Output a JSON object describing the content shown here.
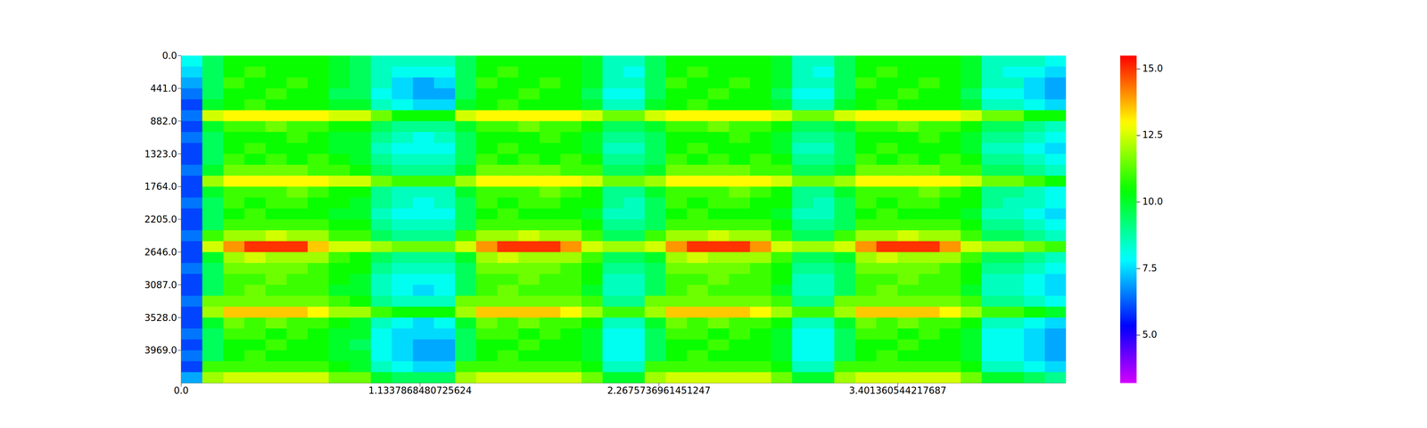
{
  "chart_data": {
    "type": "heatmap",
    "x_bins": [
      0,
      0.1,
      0.2,
      0.3,
      0.4,
      0.5,
      0.6,
      0.7,
      0.8,
      0.9,
      1.0,
      1.1,
      1.2,
      1.3,
      1.4,
      1.5,
      1.6,
      1.7,
      1.8,
      1.9,
      2.0,
      2.1,
      2.2,
      2.3,
      2.4,
      2.5,
      2.6,
      2.7,
      2.8,
      2.9,
      3.0,
      3.1,
      3.2,
      3.3,
      3.4,
      3.5,
      3.6,
      3.7,
      3.8,
      3.9,
      4.0,
      4.1,
      4.2
    ],
    "y_bins": [
      0,
      147,
      294,
      441,
      588,
      735,
      882,
      1029,
      1176,
      1323,
      1470,
      1617,
      1764,
      1911,
      2058,
      2205,
      2352,
      2499,
      2646,
      2793,
      2940,
      3087,
      3234,
      3381,
      3528,
      3675,
      3822,
      3969,
      4116,
      4263,
      4410
    ],
    "cells": [
      [
        8,
        7.5,
        7,
        6.5,
        6,
        6.5,
        6,
        6.5,
        6,
        6,
        6.5,
        6,
        6,
        6.5,
        6,
        6,
        6.5,
        6,
        6,
        6.5,
        6,
        6,
        6.5,
        6,
        6,
        6.5,
        6,
        6.5,
        6,
        7
      ],
      [
        9.5,
        9.5,
        9.5,
        9.5,
        10,
        12.5,
        10,
        9.5,
        9.5,
        9.5,
        10,
        12,
        10,
        9.5,
        9.5,
        9.5,
        11,
        12.5,
        10,
        9.5,
        9.5,
        9.5,
        11.5,
        12,
        10,
        9.5,
        9.5,
        9.5,
        11,
        12
      ],
      [
        10.5,
        10.5,
        11,
        10.5,
        10.5,
        13,
        11,
        10.5,
        10.5,
        11,
        11.5,
        13,
        11,
        11,
        10.5,
        11,
        12,
        14,
        12,
        11.5,
        11,
        11,
        11.5,
        13.5,
        11.5,
        11,
        10.5,
        10.5,
        11,
        12.5
      ],
      [
        10.5,
        11,
        10.5,
        10.5,
        11,
        13,
        11,
        10.5,
        11,
        10.5,
        11.5,
        13,
        11,
        10.5,
        11,
        11,
        12,
        15,
        12.5,
        11.5,
        11,
        11.5,
        11.5,
        13.5,
        11,
        11,
        10.5,
        11,
        11,
        12.5
      ],
      [
        10.5,
        10.5,
        10.5,
        11,
        10.5,
        13,
        11.5,
        10.5,
        10.5,
        11,
        11.5,
        13,
        11,
        11,
        10.5,
        11,
        12.5,
        15,
        12,
        11.5,
        11.5,
        11,
        11.5,
        13.5,
        11.5,
        10.5,
        11,
        10.5,
        11,
        12.5
      ],
      [
        10.5,
        10.5,
        11,
        10.5,
        10.5,
        13,
        11,
        11,
        10.5,
        10.5,
        11.5,
        13,
        11.5,
        11,
        10.5,
        11,
        12,
        15,
        12,
        11.5,
        11,
        11,
        11.5,
        13.5,
        11,
        11,
        10.5,
        10.5,
        11,
        12.5
      ],
      [
        10.5,
        10.5,
        10.5,
        10.5,
        10.5,
        13,
        11,
        10.5,
        10.5,
        11,
        11,
        13,
        11,
        10.5,
        10.5,
        11,
        12,
        13.5,
        12,
        11,
        11,
        11,
        11.5,
        13,
        11,
        10.5,
        10.5,
        10.5,
        11,
        12.5
      ],
      [
        10,
        10,
        10,
        9.5,
        10,
        12.5,
        10.5,
        10,
        10,
        10.5,
        11,
        12.5,
        10.5,
        10.5,
        10,
        10.5,
        11,
        12.5,
        11,
        10.5,
        10.5,
        10,
        11,
        12,
        10.5,
        10,
        10,
        10,
        10.5,
        11.5
      ],
      [
        9.5,
        9.5,
        9.5,
        9.5,
        10,
        12.5,
        10.5,
        10,
        10,
        10,
        10.5,
        12.5,
        10.5,
        10,
        10,
        10.5,
        11,
        12.5,
        10.5,
        10.5,
        10,
        10,
        10.5,
        12,
        10,
        10,
        9.5,
        10,
        10,
        11.5
      ],
      [
        8.5,
        8.5,
        8.5,
        8,
        8.5,
        11.5,
        9.5,
        9,
        8.5,
        9,
        9.5,
        11.5,
        9,
        9,
        8.5,
        9,
        9.5,
        12,
        9.5,
        9,
        8.5,
        8.5,
        9,
        11,
        8.5,
        8,
        8,
        8,
        8.5,
        10
      ],
      [
        8.5,
        8,
        7.5,
        7.5,
        8,
        10.5,
        9,
        8.5,
        8,
        8.5,
        9,
        11,
        8.5,
        8.5,
        8,
        8.5,
        9,
        11.5,
        9,
        8.5,
        8,
        8,
        8.5,
        10.5,
        8,
        7.5,
        7.5,
        7.5,
        8,
        9.5
      ],
      [
        8.5,
        8,
        7,
        7,
        7.5,
        10.5,
        9,
        8,
        8,
        8.5,
        9,
        11,
        8.5,
        8,
        8,
        8.5,
        9,
        11.5,
        9,
        8.5,
        8,
        7.5,
        8.5,
        10.5,
        7.5,
        7.5,
        7,
        7,
        7.5,
        9.5
      ],
      [
        8.5,
        8,
        7.5,
        7,
        7.5,
        10.5,
        9,
        8.5,
        8,
        8.5,
        9,
        11,
        8.5,
        8.5,
        8,
        8.5,
        9,
        11.5,
        9,
        8.5,
        8,
        8,
        8.5,
        10.5,
        8,
        7.5,
        7,
        7,
        7.5,
        9.5
      ],
      [
        9.5,
        9.5,
        9.5,
        9.5,
        10,
        12.5,
        10,
        9.5,
        9.5,
        9.5,
        10,
        12,
        10,
        9.5,
        9.5,
        9.5,
        11,
        12.5,
        10,
        9.5,
        9.5,
        9.5,
        11.5,
        12,
        10,
        9.5,
        9.5,
        9.5,
        11,
        12
      ],
      [
        10.5,
        10.5,
        11,
        10.5,
        10.5,
        13,
        11,
        10.5,
        10.5,
        11,
        11.5,
        13,
        11,
        11,
        10.5,
        11,
        12,
        14,
        12,
        11.5,
        11,
        11,
        11.5,
        13.5,
        11.5,
        11,
        10.5,
        10.5,
        11,
        12.5
      ],
      [
        10.5,
        11,
        10.5,
        10.5,
        11,
        13,
        11,
        10.5,
        11,
        10.5,
        11.5,
        13,
        11,
        10.5,
        11,
        11,
        12,
        15,
        12.5,
        11.5,
        11,
        11.5,
        11.5,
        13.5,
        11,
        11,
        10.5,
        11,
        11,
        12.5
      ],
      [
        10.5,
        10.5,
        10.5,
        11,
        10.5,
        13,
        11.5,
        10.5,
        10.5,
        11,
        11.5,
        13,
        11,
        11,
        10.5,
        11,
        12.5,
        15,
        12,
        11.5,
        11.5,
        11,
        11.5,
        13.5,
        11.5,
        10.5,
        11,
        10.5,
        11,
        12.5
      ],
      [
        10.5,
        10.5,
        11,
        10.5,
        10.5,
        13,
        11,
        11,
        10.5,
        10.5,
        11.5,
        13,
        11.5,
        11,
        10.5,
        11,
        12,
        15,
        12,
        11.5,
        11,
        11,
        11.5,
        13.5,
        11,
        11,
        10.5,
        10.5,
        11,
        12.5
      ],
      [
        10.5,
        10.5,
        10.5,
        10.5,
        10.5,
        13,
        11,
        10.5,
        10.5,
        11,
        11,
        13,
        11,
        10.5,
        10.5,
        11,
        12,
        14,
        12,
        11,
        11,
        11,
        11.5,
        13,
        11,
        10.5,
        10.5,
        10.5,
        11,
        12.5
      ],
      [
        10,
        10,
        10,
        9.5,
        10,
        12.5,
        10.5,
        10,
        10,
        10.5,
        11,
        12.5,
        10.5,
        10.5,
        10,
        10.5,
        11,
        12.5,
        11,
        10.5,
        10.5,
        10,
        11,
        12,
        10.5,
        10,
        10,
        10,
        10.5,
        11.5
      ],
      [
        8.5,
        8.5,
        8.5,
        8,
        8.5,
        11.5,
        9.5,
        9,
        8.5,
        9,
        9.5,
        11.5,
        9,
        9,
        8.5,
        9,
        9.5,
        12,
        9.5,
        9,
        8.5,
        8.5,
        9,
        11,
        8.5,
        8,
        8,
        8,
        8.5,
        10
      ],
      [
        8.5,
        8,
        8.5,
        8,
        8.5,
        11.5,
        9.5,
        9,
        8.5,
        9,
        9.5,
        11.5,
        9,
        8.5,
        8.5,
        9,
        9.5,
        12,
        9.5,
        9,
        8.5,
        8.5,
        9,
        11,
        8.5,
        8,
        8,
        8,
        8.5,
        10
      ],
      [
        9.5,
        9.5,
        9.5,
        9.5,
        10,
        12.5,
        10,
        9.5,
        9.5,
        9.5,
        10,
        12,
        10,
        9.5,
        9.5,
        9.5,
        11,
        12.5,
        10,
        9.5,
        9.5,
        9.5,
        11.5,
        12,
        10,
        9.5,
        9.5,
        9.5,
        11,
        12
      ],
      [
        10.5,
        10.5,
        11,
        10.5,
        10.5,
        13,
        11,
        10.5,
        10.5,
        11,
        11.5,
        13,
        11,
        11,
        10.5,
        11,
        12,
        14,
        12,
        11.5,
        11,
        11,
        11.5,
        13.5,
        11.5,
        11,
        10.5,
        10.5,
        11,
        12.5
      ],
      [
        10.5,
        11,
        10.5,
        10.5,
        11,
        13,
        11,
        10.5,
        11,
        10.5,
        11.5,
        13,
        11,
        10.5,
        11,
        11,
        12,
        15,
        12.5,
        11.5,
        11,
        11.5,
        11.5,
        13.5,
        11,
        11,
        10.5,
        11,
        11,
        12.5
      ],
      [
        10.5,
        10.5,
        10.5,
        11,
        10.5,
        13,
        11.5,
        10.5,
        10.5,
        11,
        11.5,
        13,
        11,
        11,
        10.5,
        11,
        12.5,
        15,
        12,
        11.5,
        11.5,
        11,
        11.5,
        13.5,
        11.5,
        10.5,
        11,
        10.5,
        11,
        12.5
      ],
      [
        10.5,
        10.5,
        11,
        10.5,
        10.5,
        13,
        11,
        11,
        10.5,
        10.5,
        11.5,
        13,
        11.5,
        11,
        10.5,
        11,
        12,
        15,
        12,
        11.5,
        11,
        11,
        11.5,
        13.5,
        11,
        11,
        10.5,
        10.5,
        11,
        12.5
      ],
      [
        10.5,
        10.5,
        10.5,
        10.5,
        10.5,
        13,
        11,
        10.5,
        10.5,
        11,
        11,
        13,
        11,
        10.5,
        10.5,
        11,
        12,
        14,
        12,
        11,
        11,
        11,
        11.5,
        13,
        11,
        10.5,
        10.5,
        10.5,
        11,
        12.5
      ],
      [
        10,
        10,
        10,
        9.5,
        10,
        12.5,
        10.5,
        10,
        10,
        10.5,
        11,
        12.5,
        10.5,
        10.5,
        10,
        10.5,
        11,
        12.5,
        11,
        10.5,
        10.5,
        10,
        11,
        12,
        10.5,
        10,
        10,
        10,
        10.5,
        11.5
      ],
      [
        8.5,
        8.5,
        8.5,
        8,
        8.5,
        11.5,
        9.5,
        9,
        8.5,
        9,
        9.5,
        11.5,
        9,
        9,
        8.5,
        9,
        9.5,
        12,
        9.5,
        9,
        8.5,
        8.5,
        9,
        11,
        8.5,
        8,
        8,
        8,
        8.5,
        10
      ],
      [
        8.5,
        8,
        8.5,
        8,
        8.5,
        11.5,
        9.5,
        9,
        8.5,
        9,
        9.5,
        11.5,
        9,
        8.5,
        8.5,
        9,
        9.5,
        12,
        9.5,
        9,
        8.5,
        8.5,
        9,
        11,
        8.5,
        8,
        8,
        8,
        8.5,
        10
      ],
      [
        9.5,
        9.5,
        9.5,
        9.5,
        10,
        12.5,
        10,
        9.5,
        9.5,
        9.5,
        10,
        12,
        10,
        9.5,
        9.5,
        9.5,
        11,
        12.5,
        10,
        9.5,
        9.5,
        9.5,
        11.5,
        12,
        10,
        9.5,
        9.5,
        9.5,
        11,
        12
      ],
      [
        10.5,
        10.5,
        11,
        10.5,
        10.5,
        13,
        11,
        10.5,
        10.5,
        11,
        11.5,
        13,
        11,
        11,
        10.5,
        11,
        12,
        14,
        12,
        11.5,
        11,
        11,
        11.5,
        13.5,
        11.5,
        11,
        10.5,
        10.5,
        11,
        12.5
      ],
      [
        10.5,
        11,
        10.5,
        10.5,
        11,
        13,
        11,
        10.5,
        11,
        10.5,
        11.5,
        13,
        11,
        10.5,
        11,
        11,
        12,
        15,
        12.5,
        11.5,
        11,
        11.5,
        11.5,
        13.5,
        11,
        11,
        10.5,
        11,
        11,
        12.5
      ],
      [
        10.5,
        10.5,
        10.5,
        11,
        10.5,
        13,
        11.5,
        10.5,
        10.5,
        11,
        11.5,
        13,
        11,
        11,
        10.5,
        11,
        12.5,
        15,
        12,
        11.5,
        11.5,
        11,
        11.5,
        13.5,
        11.5,
        10.5,
        11,
        10.5,
        11,
        12.5
      ],
      [
        10.5,
        10.5,
        11,
        10.5,
        10.5,
        13,
        11,
        11,
        10.5,
        10.5,
        11.5,
        13,
        11.5,
        11,
        10.5,
        11,
        12,
        15,
        12,
        11.5,
        11,
        11,
        11.5,
        13.5,
        11,
        11,
        10.5,
        10.5,
        11,
        12.5
      ],
      [
        10.5,
        10.5,
        10.5,
        10.5,
        10.5,
        13,
        11,
        10.5,
        10.5,
        11,
        11,
        13,
        11,
        10.5,
        10.5,
        11,
        12,
        14,
        12,
        11,
        11,
        11,
        11.5,
        13,
        11,
        10.5,
        10.5,
        10.5,
        11,
        12.5
      ],
      [
        10,
        10,
        10,
        9.5,
        10,
        12.5,
        10.5,
        10,
        10,
        10.5,
        11,
        12.5,
        10.5,
        10.5,
        10,
        10.5,
        11,
        12.5,
        11,
        10.5,
        10.5,
        10,
        11,
        12,
        10.5,
        10,
        10,
        10,
        10.5,
        11.5
      ],
      [
        8.5,
        8.5,
        8.5,
        8,
        8.5,
        11.5,
        9.5,
        9,
        8.5,
        9,
        9.5,
        11.5,
        9,
        9,
        8.5,
        9,
        9.5,
        12,
        9.5,
        9,
        8.5,
        8.5,
        9,
        11,
        8.5,
        8,
        8,
        8,
        8.5,
        10
      ],
      [
        8.5,
        8,
        8.5,
        8,
        8.5,
        11.5,
        9.5,
        9,
        8.5,
        9,
        9.5,
        11.5,
        9,
        8.5,
        8.5,
        9,
        9.5,
        12,
        9.5,
        9,
        8.5,
        8.5,
        9,
        11,
        8.5,
        8,
        8,
        8,
        8.5,
        10
      ],
      [
        8.5,
        8,
        7.5,
        7.5,
        8,
        10.5,
        9,
        8.5,
        8,
        8.5,
        9,
        11,
        8.5,
        8.5,
        8,
        8.5,
        9,
        11.5,
        9,
        8.5,
        8,
        8,
        8.5,
        10.5,
        8,
        7.5,
        7.5,
        7.5,
        8,
        9.5
      ],
      [
        8,
        7.5,
        7,
        7,
        7.5,
        10.5,
        8.5,
        8,
        7.5,
        8,
        8.5,
        10.5,
        8,
        8,
        7.5,
        8,
        8.5,
        11,
        8.5,
        8,
        7.5,
        7.5,
        8,
        10,
        7.5,
        7,
        7,
        7,
        7.5,
        9
      ]
    ],
    "xlim": [
      0,
      4.2
    ],
    "xticks": [
      {
        "value": 0,
        "label": "0.0"
      },
      1.1337868480725624,
      2.2675736961451247,
      3.401360544217687
    ],
    "ylim": [
      0,
      4410
    ],
    "yticks": [
      {
        "value": 0,
        "label": "0.0"
      },
      {
        "value": 441,
        "label": "441.0"
      },
      {
        "value": 882,
        "label": "882.0"
      },
      {
        "value": 1323,
        "label": "1323.0"
      },
      {
        "value": 1764,
        "label": "1764.0"
      },
      {
        "value": 2205,
        "label": "2205.0"
      },
      {
        "value": 2646,
        "label": "2646.0"
      },
      {
        "value": 3087,
        "label": "3087.0"
      },
      {
        "value": 3528,
        "label": "3528.0"
      },
      {
        "value": 3969,
        "label": "3969.0"
      }
    ],
    "colorbar_range": [
      3.2,
      15.5
    ],
    "colorbar_ticks": [
      {
        "value": 5,
        "label": "5.0"
      },
      {
        "value": 7.5,
        "label": "7.5"
      },
      {
        "value": 10,
        "label": "10.0"
      },
      {
        "value": 12.5,
        "label": "12.5"
      },
      {
        "value": 15,
        "label": "15.0"
      }
    ]
  }
}
